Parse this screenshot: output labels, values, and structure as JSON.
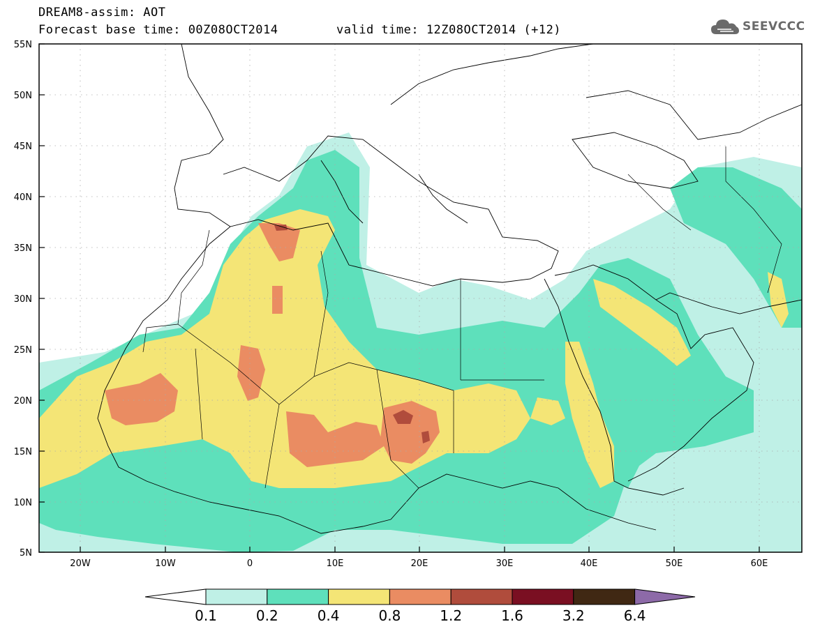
{
  "header": {
    "title": "DREAM8-assim: AOT",
    "base_time": "Forecast base time: 00Z08OCT2014",
    "valid_time": "valid time: 12Z08OCT2014 (+12)"
  },
  "logo": {
    "text": "SEEVCCC",
    "icon": "cloud-icon"
  },
  "axes": {
    "lat_labels": [
      "55N",
      "50N",
      "45N",
      "40N",
      "35N",
      "30N",
      "25N",
      "20N",
      "15N",
      "10N",
      "5N"
    ],
    "lon_labels": [
      "20W",
      "10W",
      "0",
      "10E",
      "20E",
      "30E",
      "40E",
      "50E",
      "60E"
    ]
  },
  "colorbar": {
    "labels": [
      "0.1",
      "0.2",
      "0.4",
      "0.8",
      "1.2",
      "1.6",
      "3.2",
      "6.4"
    ],
    "colors": [
      "#ffffff",
      "#bff0e6",
      "#5ee0bb",
      "#f4e576",
      "#ea8c62",
      "#b04c3c",
      "#7a0f22",
      "#402813",
      "#8d6aa8"
    ]
  },
  "colors": {
    "frame": "#000000",
    "grid": "#aaaaaa",
    "logo": "#6a6a6a"
  }
}
